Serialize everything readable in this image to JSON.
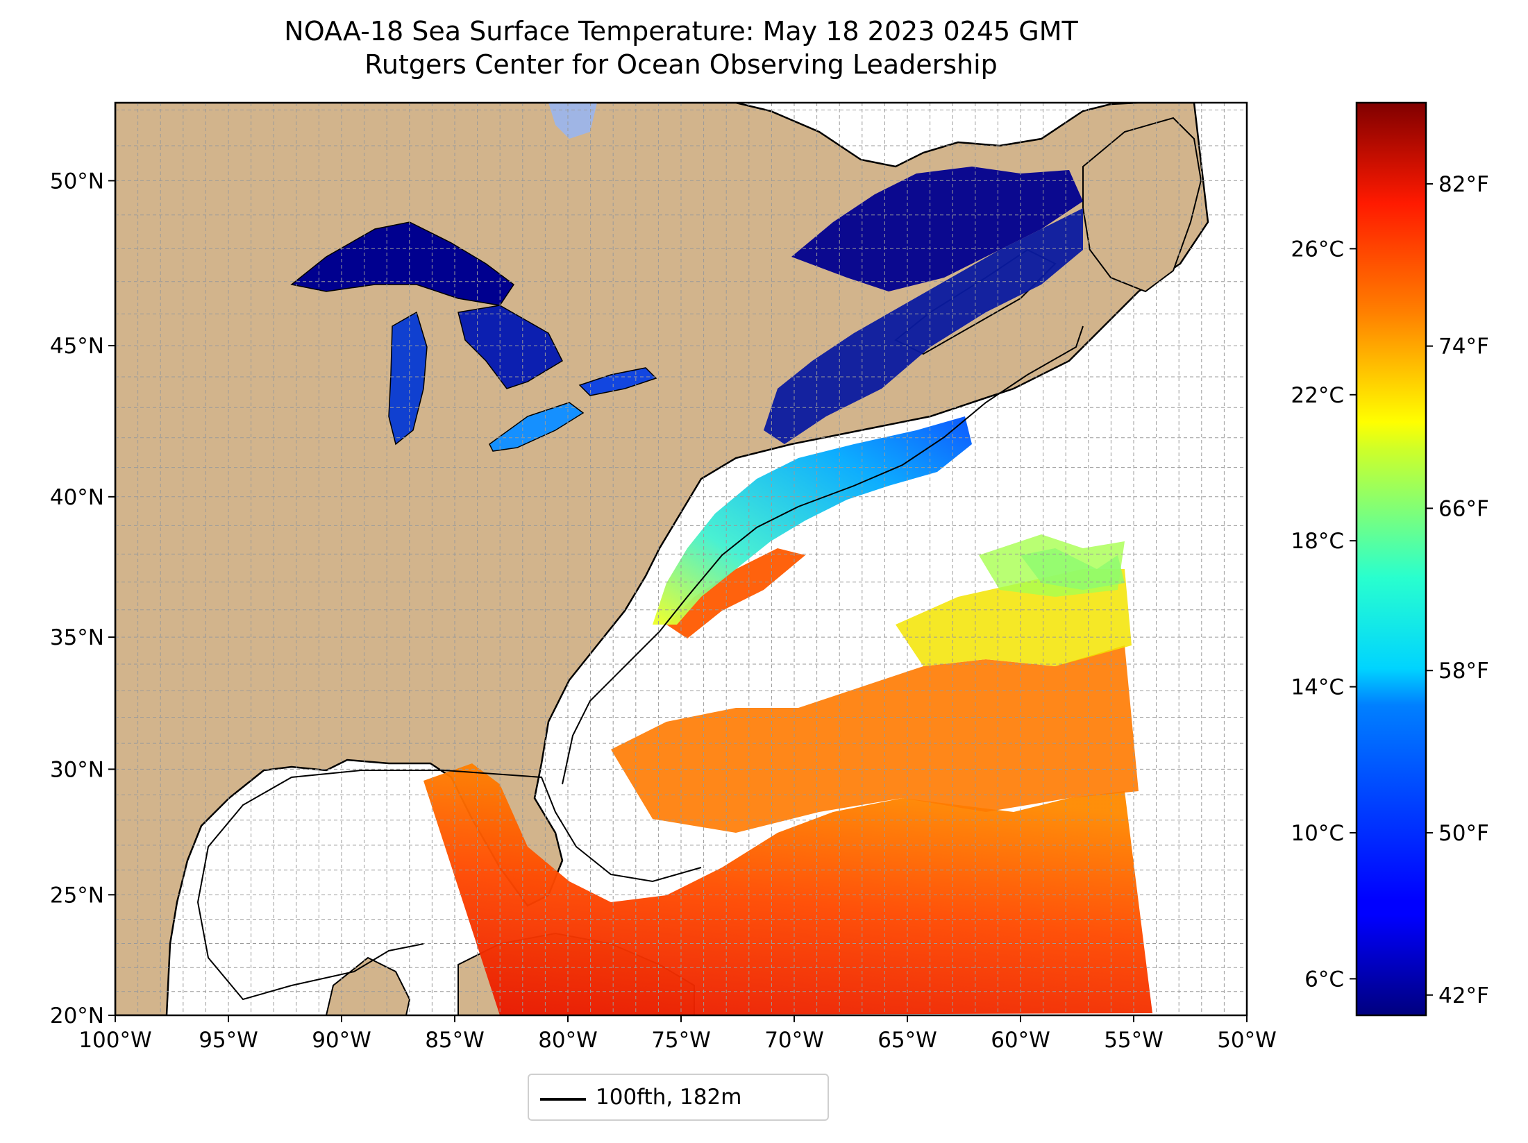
{
  "title": "NOAA-18 Sea Surface Temperature: May 18 2023 0245 GMT",
  "subtitle": "Rutgers Center for Ocean Observing Leadership",
  "map": {
    "lon_range": [
      -100,
      -50
    ],
    "lat_range": [
      20,
      52.2
    ],
    "gridline_step_deg": 1,
    "gridlines": true,
    "land_color": "#d2b48c",
    "lake_color": "#9fb5e5",
    "ocean_color": "#ffffff",
    "x_ticks": [
      {
        "lon": -100,
        "label": "100°W"
      },
      {
        "lon": -95,
        "label": "95°W"
      },
      {
        "lon": -90,
        "label": "90°W"
      },
      {
        "lon": -85,
        "label": "85°W"
      },
      {
        "lon": -80,
        "label": "80°W"
      },
      {
        "lon": -75,
        "label": "75°W"
      },
      {
        "lon": -70,
        "label": "70°W"
      },
      {
        "lon": -65,
        "label": "65°W"
      },
      {
        "lon": -60,
        "label": "60°W"
      },
      {
        "lon": -55,
        "label": "55°W"
      },
      {
        "lon": -50,
        "label": "50°W"
      }
    ],
    "y_ticks": [
      {
        "lat": 20,
        "label": "20°N"
      },
      {
        "lat": 25,
        "label": "25°N"
      },
      {
        "lat": 30,
        "label": "30°N"
      },
      {
        "lat": 35,
        "label": "35°N"
      },
      {
        "lat": 40,
        "label": "40°N"
      },
      {
        "lat": 45,
        "label": "45°N"
      },
      {
        "lat": 50,
        "label": "50°N"
      }
    ]
  },
  "colorbar": {
    "colormap": "jet",
    "range_celsius": [
      5.0,
      30.0
    ],
    "celsius_ticks": [
      {
        "value": 6,
        "label": "6°C"
      },
      {
        "value": 10,
        "label": "10°C"
      },
      {
        "value": 14,
        "label": "14°C"
      },
      {
        "value": 18,
        "label": "18°C"
      },
      {
        "value": 22,
        "label": "22°C"
      },
      {
        "value": 26,
        "label": "26°C"
      }
    ],
    "fahrenheit_ticks": [
      {
        "value": 42,
        "label": "42°F"
      },
      {
        "value": 50,
        "label": "50°F"
      },
      {
        "value": 58,
        "label": "58°F"
      },
      {
        "value": 66,
        "label": "66°F"
      },
      {
        "value": 74,
        "label": "74°F"
      },
      {
        "value": 82,
        "label": "82°F"
      }
    ]
  },
  "legend": {
    "label": "100fth, 182m",
    "line_color": "#000000"
  }
}
